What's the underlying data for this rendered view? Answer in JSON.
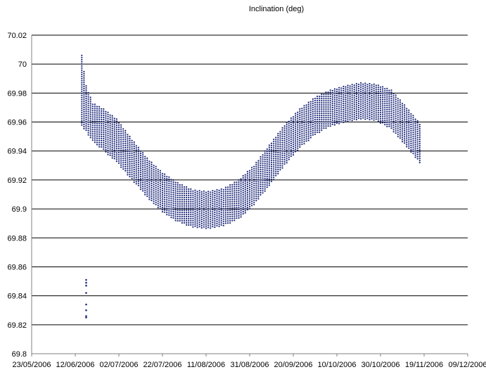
{
  "chart_data": {
    "type": "scatter",
    "title": "Inclination (deg)",
    "xlabel": "",
    "ylabel": "",
    "ylim": [
      69.8,
      70.02
    ],
    "yticks": [
      70.02,
      70,
      69.98,
      69.96,
      69.94,
      69.92,
      69.9,
      69.88,
      69.86,
      69.84,
      69.82,
      69.8
    ],
    "xticks": [
      "23/05/2006",
      "12/06/2006",
      "02/07/2006",
      "22/07/2006",
      "11/08/2006",
      "31/08/2006",
      "20/09/2006",
      "10/10/2006",
      "30/10/2006",
      "19/11/2006",
      "09/12/2006"
    ],
    "xlim": [
      "2006-05-23",
      "2006-12-09"
    ],
    "grid": true,
    "marker_color": "#1f2a7a",
    "band": [
      {
        "date": "2006-06-15",
        "low": 69.957,
        "high": 70.006
      },
      {
        "date": "2006-06-17",
        "low": 69.953,
        "high": 69.985
      },
      {
        "date": "2006-06-20",
        "low": 69.947,
        "high": 69.973
      },
      {
        "date": "2006-06-25",
        "low": 69.94,
        "high": 69.969
      },
      {
        "date": "2006-07-01",
        "low": 69.932,
        "high": 69.962
      },
      {
        "date": "2006-07-08",
        "low": 69.92,
        "high": 69.948
      },
      {
        "date": "2006-07-15",
        "low": 69.908,
        "high": 69.935
      },
      {
        "date": "2006-07-22",
        "low": 69.898,
        "high": 69.925
      },
      {
        "date": "2006-07-29",
        "low": 69.891,
        "high": 69.918
      },
      {
        "date": "2006-08-05",
        "low": 69.887,
        "high": 69.913
      },
      {
        "date": "2006-08-12",
        "low": 69.886,
        "high": 69.912
      },
      {
        "date": "2006-08-19",
        "low": 69.888,
        "high": 69.914
      },
      {
        "date": "2006-08-26",
        "low": 69.893,
        "high": 69.92
      },
      {
        "date": "2006-09-02",
        "low": 69.903,
        "high": 69.93
      },
      {
        "date": "2006-09-09",
        "low": 69.916,
        "high": 69.944
      },
      {
        "date": "2006-09-16",
        "low": 69.93,
        "high": 69.958
      },
      {
        "date": "2006-09-23",
        "low": 69.942,
        "high": 69.969
      },
      {
        "date": "2006-09-30",
        "low": 69.951,
        "high": 69.977
      },
      {
        "date": "2006-10-07",
        "low": 69.957,
        "high": 69.982
      },
      {
        "date": "2006-10-14",
        "low": 69.96,
        "high": 69.985
      },
      {
        "date": "2006-10-21",
        "low": 69.962,
        "high": 69.987
      },
      {
        "date": "2006-10-28",
        "low": 69.961,
        "high": 69.986
      },
      {
        "date": "2006-11-04",
        "low": 69.955,
        "high": 69.982
      },
      {
        "date": "2006-11-11",
        "low": 69.943,
        "high": 69.97
      },
      {
        "date": "2006-11-17",
        "low": 69.932,
        "high": 69.959
      }
    ],
    "outliers": [
      {
        "date": "2006-06-17",
        "value": 69.851
      },
      {
        "date": "2006-06-17",
        "value": 69.849
      },
      {
        "date": "2006-06-17",
        "value": 69.847
      },
      {
        "date": "2006-06-17",
        "value": 69.842
      },
      {
        "date": "2006-06-17",
        "value": 69.834
      },
      {
        "date": "2006-06-17",
        "value": 69.83
      },
      {
        "date": "2006-06-17",
        "value": 69.826
      },
      {
        "date": "2006-06-17",
        "value": 69.825
      }
    ]
  }
}
